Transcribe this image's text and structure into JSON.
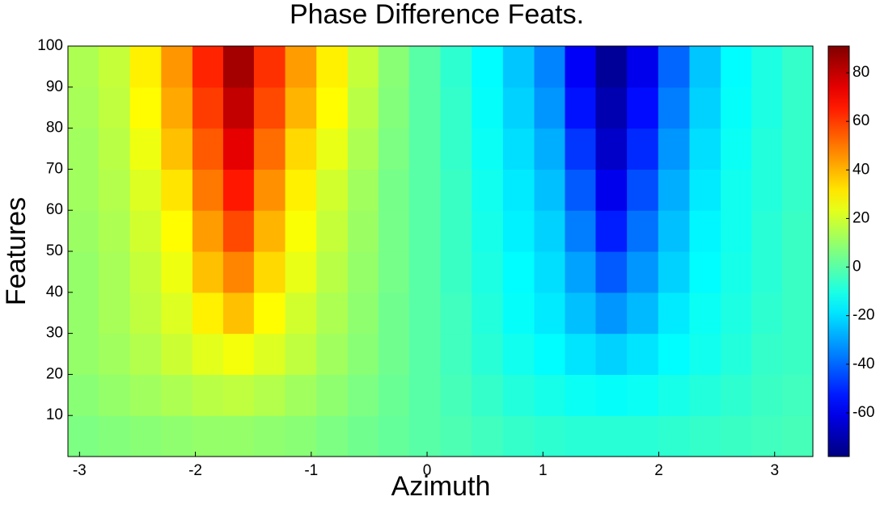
{
  "chart_data": {
    "type": "heatmap",
    "title": "Phase Difference Feats.",
    "xlabel": "Azimuth",
    "ylabel": "Features",
    "colormap": "jet",
    "x": [
      -2.97,
      -2.7,
      -2.43,
      -2.16,
      -1.89,
      -1.63,
      -1.36,
      -1.09,
      -0.82,
      -0.55,
      -0.29,
      -0.02,
      0.25,
      0.52,
      0.79,
      1.06,
      1.32,
      1.59,
      1.86,
      2.13,
      2.4,
      2.67,
      2.93,
      3.2
    ],
    "y": [
      5,
      15,
      25,
      35,
      45,
      55,
      65,
      75,
      85,
      95
    ],
    "z": [
      [
        6,
        7,
        8,
        9,
        10,
        10,
        9,
        8,
        6,
        4,
        2,
        0,
        -2,
        -4,
        -6,
        -7,
        -8,
        -8,
        -8,
        -7,
        -6,
        -5,
        -4,
        -3
      ],
      [
        8,
        10,
        12,
        14,
        16,
        17,
        15,
        12,
        9,
        6,
        3,
        0,
        -3,
        -6,
        -9,
        -11,
        -13,
        -14,
        -13,
        -11,
        -9,
        -7,
        -5,
        -4
      ],
      [
        10,
        12,
        15,
        19,
        23,
        26,
        22,
        17,
        12,
        8,
        4,
        0,
        -4,
        -8,
        -12,
        -15,
        -19,
        -22,
        -19,
        -15,
        -12,
        -9,
        -6,
        -5
      ],
      [
        10,
        13,
        17,
        22,
        30,
        38,
        28,
        20,
        14,
        9,
        4,
        0,
        -4,
        -9,
        -14,
        -18,
        -25,
        -32,
        -26,
        -18,
        -13,
        -10,
        -7,
        -5
      ],
      [
        10,
        13,
        18,
        25,
        38,
        48,
        34,
        24,
        16,
        10,
        5,
        0,
        -5,
        -10,
        -15,
        -20,
        -30,
        -42,
        -32,
        -22,
        -15,
        -11,
        -8,
        -5
      ],
      [
        11,
        14,
        20,
        28,
        44,
        58,
        40,
        27,
        18,
        11,
        5,
        0,
        -5,
        -11,
        -17,
        -22,
        -36,
        -52,
        -38,
        -25,
        -16,
        -12,
        -8,
        -5
      ],
      [
        12,
        15,
        22,
        32,
        50,
        66,
        46,
        30,
        20,
        12,
        5,
        0,
        -5,
        -12,
        -18,
        -25,
        -42,
        -60,
        -44,
        -28,
        -18,
        -12,
        -9,
        -6
      ],
      [
        12,
        16,
        25,
        38,
        55,
        74,
        52,
        34,
        24,
        14,
        6,
        0,
        -6,
        -13,
        -20,
        -28,
        -48,
        -66,
        -50,
        -32,
        -20,
        -13,
        -9,
        -6
      ],
      [
        13,
        17,
        28,
        42,
        60,
        80,
        58,
        40,
        28,
        16,
        7,
        0,
        -6,
        -14,
        -22,
        -32,
        -54,
        -70,
        -55,
        -36,
        -22,
        -14,
        -10,
        -6
      ],
      [
        14,
        18,
        30,
        45,
        64,
        85,
        62,
        44,
        30,
        18,
        8,
        0,
        -7,
        -15,
        -24,
        -35,
        -58,
        -74,
        -60,
        -40,
        -24,
        -15,
        -10,
        -6
      ]
    ],
    "xlim": [
      -3.1,
      3.33
    ],
    "xticks": [
      -3,
      -2,
      -1,
      0,
      1,
      2,
      3
    ],
    "ylim": [
      0,
      100
    ],
    "yticks": [
      10,
      20,
      30,
      40,
      50,
      60,
      70,
      80,
      90,
      100
    ],
    "clim": [
      -78,
      91
    ],
    "cticks": [
      -60,
      -40,
      -20,
      0,
      20,
      40,
      60,
      80
    ]
  }
}
